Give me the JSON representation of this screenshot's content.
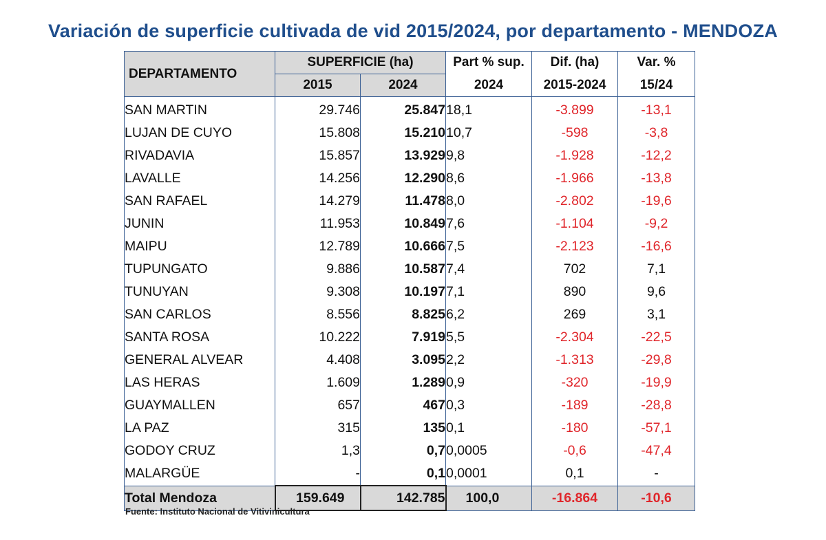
{
  "title": "Variación de superficie cultivada de vid 2015/2024, por departamento - MENDOZA",
  "headers": {
    "departamento": "DEPARTAMENTO",
    "superficie": "SUPERFICIE (ha)",
    "year_2015": "2015",
    "year_2024": "2024",
    "part_line1": "Part % sup.",
    "part_line2": "2024",
    "dif_line1": "Dif. (ha)",
    "dif_line2": "2015-2024",
    "var_line1": "Var. %",
    "var_line2": "15/24"
  },
  "rows": [
    {
      "departamento": "SAN MARTIN",
      "sup_2015": "29.746",
      "sup_2024": "25.847",
      "part": "18,1",
      "dif": "-3.899",
      "var": "-13,1"
    },
    {
      "departamento": "LUJAN DE CUYO",
      "sup_2015": "15.808",
      "sup_2024": "15.210",
      "part": "10,7",
      "dif": "-598",
      "var": "-3,8"
    },
    {
      "departamento": "RIVADAVIA",
      "sup_2015": "15.857",
      "sup_2024": "13.929",
      "part": "9,8",
      "dif": "-1.928",
      "var": "-12,2"
    },
    {
      "departamento": "LAVALLE",
      "sup_2015": "14.256",
      "sup_2024": "12.290",
      "part": "8,6",
      "dif": "-1.966",
      "var": "-13,8"
    },
    {
      "departamento": "SAN RAFAEL",
      "sup_2015": "14.279",
      "sup_2024": "11.478",
      "part": "8,0",
      "dif": "-2.802",
      "var": "-19,6"
    },
    {
      "departamento": "JUNIN",
      "sup_2015": "11.953",
      "sup_2024": "10.849",
      "part": "7,6",
      "dif": "-1.104",
      "var": "-9,2"
    },
    {
      "departamento": "MAIPU",
      "sup_2015": "12.789",
      "sup_2024": "10.666",
      "part": "7,5",
      "dif": "-2.123",
      "var": "-16,6"
    },
    {
      "departamento": "TUPUNGATO",
      "sup_2015": "9.886",
      "sup_2024": "10.587",
      "part": "7,4",
      "dif": "702",
      "var": "7,1"
    },
    {
      "departamento": "TUNUYAN",
      "sup_2015": "9.308",
      "sup_2024": "10.197",
      "part": "7,1",
      "dif": "890",
      "var": "9,6"
    },
    {
      "departamento": "SAN CARLOS",
      "sup_2015": "8.556",
      "sup_2024": "8.825",
      "part": "6,2",
      "dif": "269",
      "var": "3,1"
    },
    {
      "departamento": "SANTA ROSA",
      "sup_2015": "10.222",
      "sup_2024": "7.919",
      "part": "5,5",
      "dif": "-2.304",
      "var": "-22,5"
    },
    {
      "departamento": "GENERAL ALVEAR",
      "sup_2015": "4.408",
      "sup_2024": "3.095",
      "part": "2,2",
      "dif": "-1.313",
      "var": "-29,8"
    },
    {
      "departamento": "LAS HERAS",
      "sup_2015": "1.609",
      "sup_2024": "1.289",
      "part": "0,9",
      "dif": "-320",
      "var": "-19,9"
    },
    {
      "departamento": "GUAYMALLEN",
      "sup_2015": "657",
      "sup_2024": "467",
      "part": "0,3",
      "dif": "-189",
      "var": "-28,8"
    },
    {
      "departamento": "LA PAZ",
      "sup_2015": "315",
      "sup_2024": "135",
      "part": "0,1",
      "dif": "-180",
      "var": "-57,1"
    },
    {
      "departamento": "GODOY CRUZ",
      "sup_2015": "1,3",
      "sup_2024": "0,7",
      "part": "0,0005",
      "dif": "-0,6",
      "var": "-47,4"
    },
    {
      "departamento": "MALARGÜE",
      "sup_2015": "-",
      "sup_2024": "0,1",
      "part": "0,0001",
      "dif": "0,1",
      "var": "-"
    }
  ],
  "total": {
    "departamento": "Total Mendoza",
    "sup_2015": "159.649",
    "sup_2024": "142.785",
    "part": "100,0",
    "dif": "-16.864",
    "var": "-10,6"
  },
  "source": "Fuente: Instituto Nacional de Vitivinicultura",
  "colors": {
    "title": "#1f4e8c",
    "border": "#3a5f94",
    "header_bg": "#d9d9d9",
    "negative": "#e0262b"
  }
}
